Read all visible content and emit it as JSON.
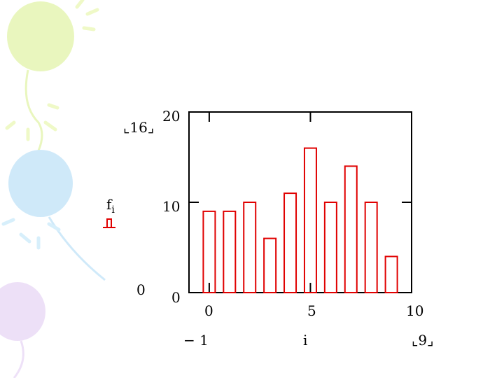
{
  "chart_data": {
    "type": "bar",
    "x": [
      0,
      1,
      2,
      3,
      4,
      5,
      6,
      7,
      8,
      9
    ],
    "values": [
      9,
      9,
      10,
      6,
      11,
      16,
      10,
      14,
      10,
      4
    ],
    "xlim": [
      -1,
      10
    ],
    "ylim": [
      0,
      20
    ],
    "xticks": [
      "0",
      "5",
      "10"
    ],
    "yticks": [
      "0",
      "10",
      "20"
    ],
    "xlabel": "i",
    "ylabel": "f",
    "ylabel_subscript": "i",
    "x_range_min": "− 1",
    "x_range_max": "9",
    "y_range_max": "16",
    "y_range_min": "0",
    "grid": false,
    "bar_color": "#e00000"
  }
}
